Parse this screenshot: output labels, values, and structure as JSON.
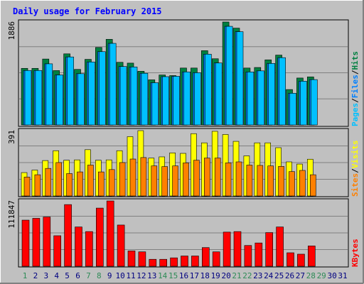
{
  "title": "Daily usage for February 2015",
  "colors": {
    "background": "#c0c0c0",
    "title": "#0000ff",
    "hits": "#008040",
    "files": "#0080ff",
    "pages": "#00c0ff",
    "visits": "#ffff00",
    "sites": "#ff8000",
    "kbytes": "#ff0000",
    "weekend_label": "#2e8b57",
    "weekday_label": "#000080",
    "grid": "#808080",
    "frame": "#000000"
  },
  "chart_data": [
    {
      "type": "bar",
      "panel": "top",
      "ymax_label": "1886",
      "ymax": 1886,
      "x": [
        1,
        2,
        3,
        4,
        5,
        6,
        7,
        8,
        9,
        10,
        11,
        12,
        13,
        14,
        15,
        16,
        17,
        18,
        19,
        20,
        21,
        22,
        23,
        24,
        25,
        26,
        27,
        28
      ],
      "series": [
        {
          "name": "Hits",
          "values": [
            1037,
            1037,
            1208,
            996,
            1303,
            1018,
            1202,
            1420,
            1569,
            1148,
            1133,
            984,
            827,
            916,
            905,
            1043,
            1043,
            1361,
            1213,
            1886,
            1774,
            1043,
            1053,
            1193,
            1280,
            649,
            860,
            881
          ]
        },
        {
          "name": "Files",
          "values": [
            998,
            998,
            1120,
            916,
            1246,
            939,
            1154,
            1343,
            1495,
            1071,
            1063,
            947,
            774,
            885,
            892,
            972,
            957,
            1297,
            1136,
            1807,
            1709,
            971,
            991,
            1127,
            1233,
            581,
            802,
            831
          ]
        },
        {
          "name": "Pages",
          "values": [
            998,
            998,
            1120,
            916,
            1246,
            939,
            1154,
            1343,
            1495,
            1071,
            1063,
            947,
            774,
            885,
            892,
            972,
            957,
            1297,
            1136,
            1807,
            1709,
            971,
            991,
            1127,
            1233,
            581,
            802,
            831
          ]
        }
      ],
      "legend": [
        "Pages",
        "Files",
        "Hits"
      ]
    },
    {
      "type": "bar",
      "panel": "middle",
      "ymax_label": "391",
      "ymax": 391,
      "x": [
        1,
        2,
        3,
        4,
        5,
        6,
        7,
        8,
        9,
        10,
        11,
        12,
        13,
        14,
        15,
        16,
        17,
        18,
        19,
        20,
        21,
        22,
        23,
        24,
        25,
        26,
        27,
        28
      ],
      "series": [
        {
          "name": "Visits",
          "values": [
            140,
            155,
            212,
            271,
            214,
            216,
            277,
            214,
            216,
            271,
            355,
            391,
            227,
            234,
            258,
            255,
            373,
            318,
            387,
            368,
            327,
            240,
            318,
            318,
            289,
            204,
            191,
            220
          ]
        },
        {
          "name": "Sites",
          "values": [
            113,
            127,
            165,
            200,
            134,
            144,
            185,
            144,
            158,
            200,
            221,
            230,
            180,
            176,
            180,
            198,
            214,
            227,
            227,
            198,
            204,
            185,
            183,
            180,
            177,
            146,
            153,
            127
          ]
        }
      ],
      "legend": [
        "Sites",
        "Visits"
      ]
    },
    {
      "type": "bar",
      "panel": "bottom",
      "ymax_label": "111847",
      "ymax": 111847,
      "x": [
        1,
        2,
        3,
        4,
        5,
        6,
        7,
        8,
        9,
        10,
        11,
        12,
        13,
        14,
        15,
        16,
        17,
        18,
        19,
        20,
        21,
        22,
        23,
        24,
        25,
        26,
        27,
        28
      ],
      "series": [
        {
          "name": "KBytes",
          "values": [
            79000,
            82100,
            84400,
            52300,
            105600,
            67300,
            59400,
            99600,
            111847,
            70600,
            26300,
            24700,
            11900,
            11900,
            14400,
            17600,
            17600,
            32000,
            24700,
            58500,
            59400,
            35600,
            39900,
            57700,
            67300,
            23100,
            20700,
            34800
          ]
        }
      ],
      "legend": [
        "KBytes"
      ]
    }
  ],
  "x_labels": [
    "1",
    "2",
    "3",
    "4",
    "5",
    "6",
    "7",
    "8",
    "9",
    "10",
    "11",
    "12",
    "13",
    "14",
    "15",
    "16",
    "17",
    "18",
    "19",
    "20",
    "21",
    "22",
    "23",
    "24",
    "25",
    "26",
    "27",
    "28",
    "29",
    "30",
    "31"
  ],
  "weekend_days": [
    1,
    7,
    8,
    14,
    15,
    21,
    22,
    28,
    29
  ]
}
